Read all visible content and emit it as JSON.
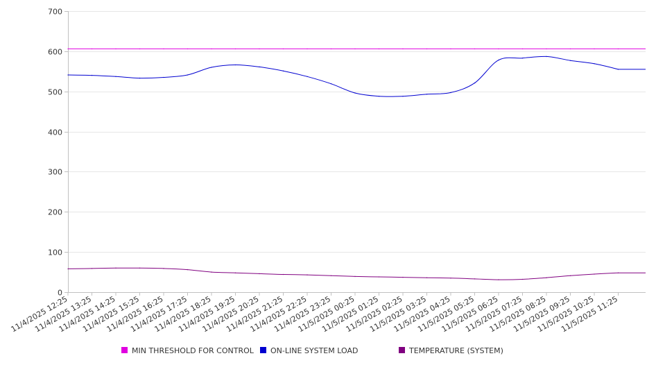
{
  "chart_data": {
    "type": "line",
    "title": "",
    "xlabel": "",
    "ylabel": "",
    "ylim": [
      0,
      700
    ],
    "y_ticks": [
      0,
      100,
      200,
      300,
      400,
      500,
      600,
      700
    ],
    "grid": "horizontal",
    "legend_position": "bottom",
    "categories": [
      "11/4/2025 12:25",
      "11/4/2025 13:25",
      "11/4/2025 14:25",
      "11/4/2025 15:25",
      "11/4/2025 16:25",
      "11/4/2025 17:25",
      "11/4/2025 18:25",
      "11/4/2025 19:25",
      "11/4/2025 20:25",
      "11/4/2025 21:25",
      "11/4/2025 22:25",
      "11/4/2025 23:25",
      "11/5/2025 00:25",
      "11/5/2025 01:25",
      "11/5/2025 02:25",
      "11/5/2025 03:25",
      "11/5/2025 04:25",
      "11/5/2025 05:25",
      "11/5/2025 06:25",
      "11/5/2025 07:25",
      "11/5/2025 08:25",
      "11/5/2025 09:25",
      "11/5/2025 10:25",
      "11/5/2025 11:25"
    ],
    "series": [
      {
        "name": "MIN THRESHOLD FOR CONTROL",
        "color": "#e000e0",
        "values": [
          606,
          606,
          606,
          606,
          606,
          606,
          606,
          606,
          606,
          606,
          606,
          606,
          606,
          606,
          606,
          606,
          606,
          606,
          606,
          606,
          606,
          606,
          606,
          606
        ]
      },
      {
        "name": "ON-LINE SYSTEM LOAD",
        "color": "#0000d0",
        "values": [
          541,
          540,
          537,
          533,
          535,
          541,
          560,
          566,
          561,
          551,
          537,
          519,
          496,
          488,
          488,
          493,
          497,
          521,
          578,
          583,
          587,
          577,
          569,
          555
        ]
      },
      {
        "name": "TEMPERATURE (SYSTEM)",
        "color": "#800080",
        "values": [
          58,
          59,
          60,
          60,
          59,
          56,
          50,
          48,
          46,
          44,
          43,
          41,
          39,
          38,
          37,
          36,
          35,
          33,
          31,
          32,
          36,
          41,
          45,
          48
        ]
      }
    ]
  }
}
